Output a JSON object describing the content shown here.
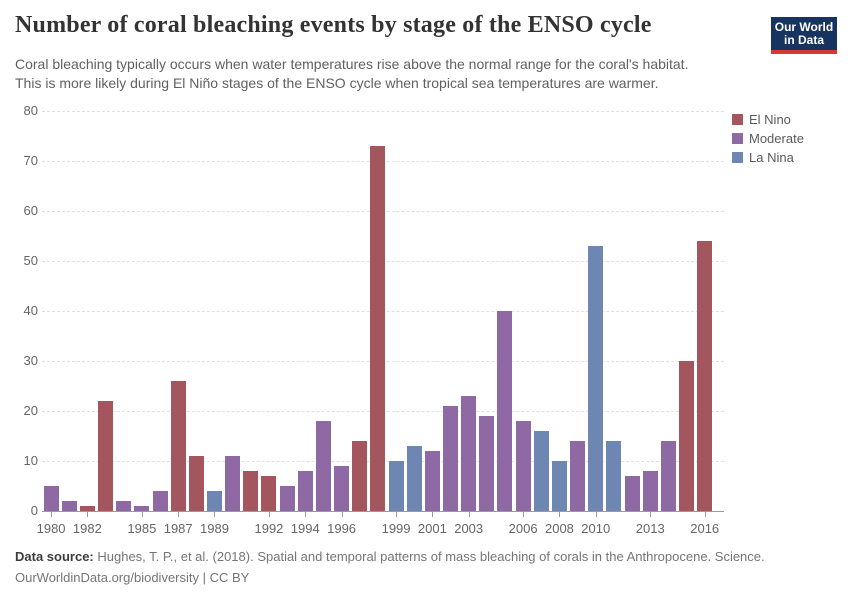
{
  "header": {
    "title": "Number of coral bleaching events by stage of the ENSO cycle",
    "subtitle_lines": [
      "Coral bleaching typically occurs when water temperatures rise above the normal range for the coral's habitat.",
      "This is more likely during El Niño stages of the ENSO cycle when tropical sea temperatures are warmer."
    ],
    "logo": {
      "line1": "Our World",
      "line2": "in Data",
      "bg": "#17335f",
      "accent": "#d93832"
    }
  },
  "legend": {
    "position": "right",
    "items": [
      {
        "label": "El Nino",
        "color": "#a4565e"
      },
      {
        "label": "Moderate",
        "color": "#8e69a4"
      },
      {
        "label": "La Nina",
        "color": "#6d86b2"
      }
    ]
  },
  "chart_data": {
    "type": "bar",
    "title": "Number of coral bleaching events by stage of the ENSO cycle",
    "xlabel": "",
    "ylabel": "",
    "ylim": [
      0,
      80
    ],
    "yticks": [
      0,
      10,
      20,
      30,
      40,
      50,
      60,
      70,
      80
    ],
    "xticks": [
      1980,
      1982,
      1985,
      1987,
      1989,
      1992,
      1994,
      1996,
      1999,
      2001,
      2003,
      2006,
      2008,
      2010,
      2013,
      2016
    ],
    "grid": "horizontal-dashed",
    "legend_position": "right",
    "series_colors": {
      "El Nino": "#a4565e",
      "Moderate": "#8e69a4",
      "La Nina": "#6d86b2"
    },
    "points": [
      {
        "year": 1980,
        "value": 5,
        "category": "Moderate"
      },
      {
        "year": 1981,
        "value": 2,
        "category": "Moderate"
      },
      {
        "year": 1982,
        "value": 1,
        "category": "El Nino"
      },
      {
        "year": 1983,
        "value": 22,
        "category": "El Nino"
      },
      {
        "year": 1984,
        "value": 2,
        "category": "Moderate"
      },
      {
        "year": 1985,
        "value": 1,
        "category": "Moderate"
      },
      {
        "year": 1986,
        "value": 4,
        "category": "Moderate"
      },
      {
        "year": 1987,
        "value": 26,
        "category": "El Nino"
      },
      {
        "year": 1988,
        "value": 11,
        "category": "El Nino"
      },
      {
        "year": 1989,
        "value": 4,
        "category": "La Nina"
      },
      {
        "year": 1990,
        "value": 11,
        "category": "Moderate"
      },
      {
        "year": 1991,
        "value": 8,
        "category": "El Nino"
      },
      {
        "year": 1992,
        "value": 7,
        "category": "El Nino"
      },
      {
        "year": 1993,
        "value": 5,
        "category": "Moderate"
      },
      {
        "year": 1994,
        "value": 8,
        "category": "Moderate"
      },
      {
        "year": 1995,
        "value": 18,
        "category": "Moderate"
      },
      {
        "year": 1996,
        "value": 9,
        "category": "Moderate"
      },
      {
        "year": 1997,
        "value": 14,
        "category": "El Nino"
      },
      {
        "year": 1998,
        "value": 73,
        "category": "El Nino"
      },
      {
        "year": 1999,
        "value": 10,
        "category": "La Nina"
      },
      {
        "year": 2000,
        "value": 13,
        "category": "La Nina"
      },
      {
        "year": 2001,
        "value": 12,
        "category": "Moderate"
      },
      {
        "year": 2002,
        "value": 21,
        "category": "Moderate"
      },
      {
        "year": 2003,
        "value": 23,
        "category": "Moderate"
      },
      {
        "year": 2004,
        "value": 19,
        "category": "Moderate"
      },
      {
        "year": 2005,
        "value": 40,
        "category": "Moderate"
      },
      {
        "year": 2006,
        "value": 18,
        "category": "Moderate"
      },
      {
        "year": 2007,
        "value": 16,
        "category": "La Nina"
      },
      {
        "year": 2008,
        "value": 10,
        "category": "La Nina"
      },
      {
        "year": 2009,
        "value": 14,
        "category": "Moderate"
      },
      {
        "year": 2010,
        "value": 53,
        "category": "La Nina"
      },
      {
        "year": 2011,
        "value": 14,
        "category": "La Nina"
      },
      {
        "year": 2012,
        "value": 7,
        "category": "Moderate"
      },
      {
        "year": 2013,
        "value": 8,
        "category": "Moderate"
      },
      {
        "year": 2014,
        "value": 14,
        "category": "Moderate"
      },
      {
        "year": 2015,
        "value": 30,
        "category": "El Nino"
      },
      {
        "year": 2016,
        "value": 54,
        "category": "El Nino"
      }
    ]
  },
  "footer": {
    "source_label": "Data source:",
    "source_text": "Hughes, T. P., et al. (2018). Spatial and temporal patterns of mass bleaching of corals in the Anthropocene. Science.",
    "link_line": "OurWorldinData.org/biodiversity | CC BY"
  }
}
